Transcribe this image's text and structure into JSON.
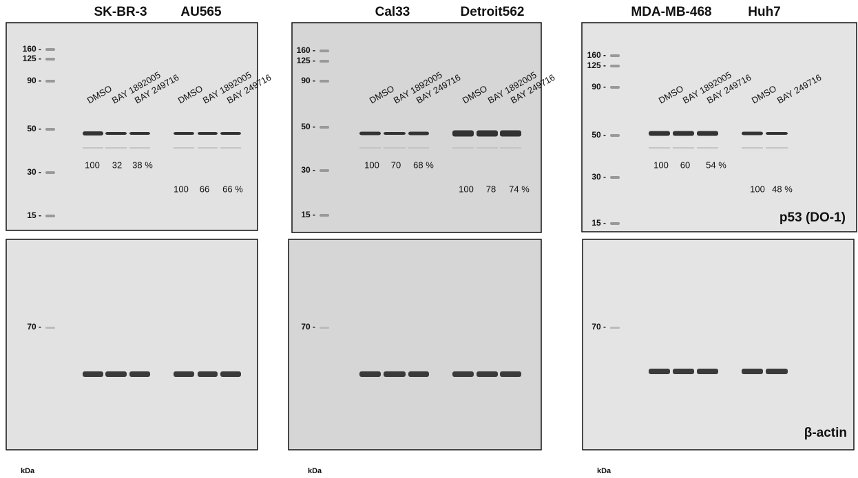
{
  "panels": [
    {
      "cell_lines": [
        "SK-BR-3",
        "AU565"
      ],
      "top_blot": {
        "markers": [
          "160 -",
          "125 -",
          "90 -",
          "50 -",
          "30 -",
          "15 -"
        ],
        "lanes": [
          "DMSO",
          "BAY 1892005",
          "BAY 249716",
          "DMSO",
          "BAY 1892005",
          "BAY 249716"
        ],
        "quantification": [
          [
            "100",
            "32",
            "38 %"
          ],
          [
            "100",
            "66",
            "66 %"
          ]
        ]
      },
      "bottom_blot": {
        "markers": [
          "70 -"
        ]
      },
      "unit": "kDa"
    },
    {
      "cell_lines": [
        "Cal33",
        "Detroit562"
      ],
      "top_blot": {
        "markers": [
          "160 -",
          "125 -",
          "90 -",
          "50 -",
          "30 -",
          "15 -"
        ],
        "lanes": [
          "DMSO",
          "BAY 1892005",
          "BAY 249716",
          "DMSO",
          "BAY 1892005",
          "BAY 249716"
        ],
        "quantification": [
          [
            "100",
            "70",
            "68 %"
          ],
          [
            "100",
            "78",
            "74 %"
          ]
        ]
      },
      "bottom_blot": {
        "markers": [
          "70 -"
        ]
      },
      "unit": "kDa"
    },
    {
      "cell_lines": [
        "MDA-MB-468",
        "Huh7"
      ],
      "top_blot": {
        "markers": [
          "160 -",
          "125 -",
          "90 -",
          "50 -",
          "30 -",
          "15 -"
        ],
        "lanes": [
          "DMSO",
          "BAY 1892005",
          "BAY 249716",
          "DMSO",
          "BAY 249716"
        ],
        "quantification": [
          [
            "100",
            "60",
            "54 %"
          ],
          [
            "100",
            "48 %"
          ]
        ]
      },
      "bottom_blot": {
        "markers": [
          "70 -"
        ]
      },
      "unit": "kDa"
    }
  ],
  "labels": {
    "top": "p53 (DO-1)",
    "bottom": "β-actin"
  }
}
